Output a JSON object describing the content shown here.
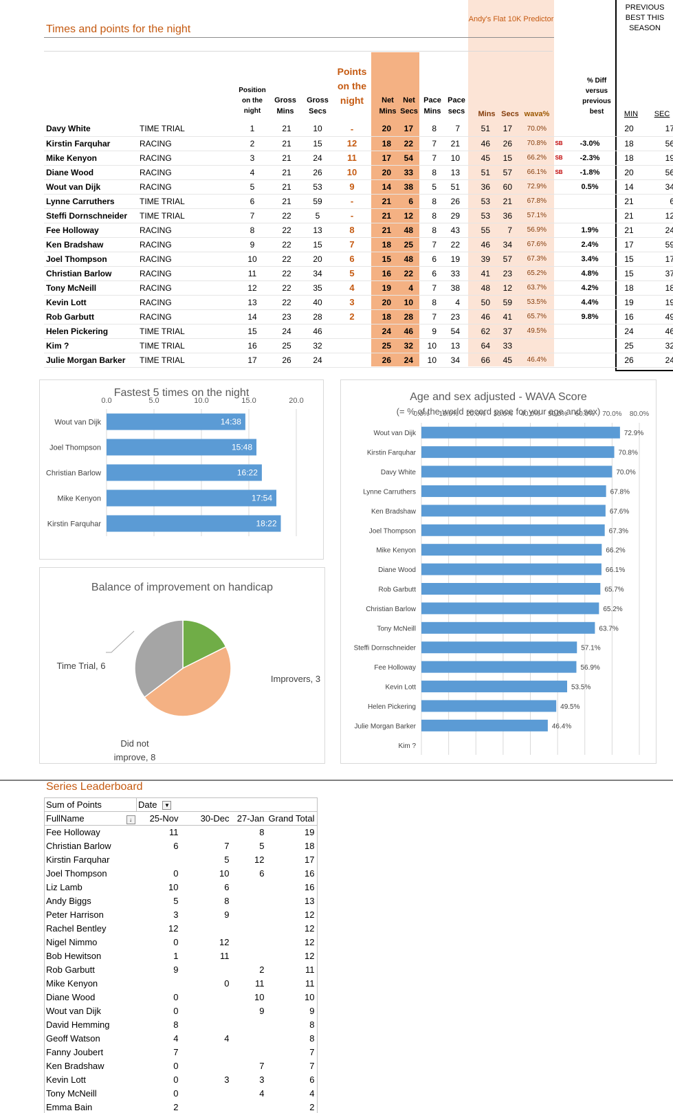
{
  "title": "Times and points for the night",
  "predictor_title": "Andy's Flat 10K Predictor",
  "previous_best_title": "PREVIOUS BEST THIS SEASON",
  "headers": {
    "position": "Position on the night",
    "gross_mins": "Gross Mins",
    "gross_secs": "Gross Secs",
    "points": "Points on the night",
    "net_mins": "Net Mins",
    "net_secs": "Net Secs",
    "pace_mins": "Pace Mins",
    "pace_secs": "Pace secs",
    "pred_mins": "Mins",
    "pred_secs": "Secs",
    "wava": "wava%",
    "pct_diff": "% Diff versus previous best",
    "prev_min": "MIN",
    "prev_sec": "SEC"
  },
  "results": [
    {
      "name": "Davy White",
      "type": "TIME TRIAL",
      "pos": "1",
      "gm": "21",
      "gs": "10",
      "pts": "-",
      "nm": "20",
      "ns": "17",
      "pm": "8",
      "ps": "7",
      "prm": "51",
      "prs": "17",
      "wava": "70.0%",
      "sb": "",
      "diff": "",
      "bm": "20",
      "bs": "17"
    },
    {
      "name": "Kirstin Farquhar",
      "type": "RACING",
      "pos": "2",
      "gm": "21",
      "gs": "15",
      "pts": "12",
      "nm": "18",
      "ns": "22",
      "pm": "7",
      "ps": "21",
      "prm": "46",
      "prs": "26",
      "wava": "70.8%",
      "sb": "SB",
      "diff": "-3.0%",
      "bm": "18",
      "bs": "56"
    },
    {
      "name": "Mike Kenyon",
      "type": "RACING",
      "pos": "3",
      "gm": "21",
      "gs": "24",
      "pts": "11",
      "nm": "17",
      "ns": "54",
      "pm": "7",
      "ps": "10",
      "prm": "45",
      "prs": "15",
      "wava": "66.2%",
      "sb": "SB",
      "diff": "-2.3%",
      "bm": "18",
      "bs": "19"
    },
    {
      "name": "Diane Wood",
      "type": "RACING",
      "pos": "4",
      "gm": "21",
      "gs": "26",
      "pts": "10",
      "nm": "20",
      "ns": "33",
      "pm": "8",
      "ps": "13",
      "prm": "51",
      "prs": "57",
      "wava": "66.1%",
      "sb": "SB",
      "diff": "-1.8%",
      "bm": "20",
      "bs": "56"
    },
    {
      "name": "Wout van Dijk",
      "type": "RACING",
      "pos": "5",
      "gm": "21",
      "gs": "53",
      "pts": "9",
      "nm": "14",
      "ns": "38",
      "pm": "5",
      "ps": "51",
      "prm": "36",
      "prs": "60",
      "wava": "72.9%",
      "sb": "",
      "diff": "0.5%",
      "bm": "14",
      "bs": "34"
    },
    {
      "name": "Lynne Carruthers",
      "type": "TIME TRIAL",
      "pos": "6",
      "gm": "21",
      "gs": "59",
      "pts": "-",
      "nm": "21",
      "ns": "6",
      "pm": "8",
      "ps": "26",
      "prm": "53",
      "prs": "21",
      "wava": "67.8%",
      "sb": "",
      "diff": "",
      "bm": "21",
      "bs": "6"
    },
    {
      "name": "Steffi Dornschneider",
      "type": "TIME TRIAL",
      "pos": "7",
      "gm": "22",
      "gs": "5",
      "pts": "-",
      "nm": "21",
      "ns": "12",
      "pm": "8",
      "ps": "29",
      "prm": "53",
      "prs": "36",
      "wava": "57.1%",
      "sb": "",
      "diff": "",
      "bm": "21",
      "bs": "12"
    },
    {
      "name": "Fee Holloway",
      "type": "RACING",
      "pos": "8",
      "gm": "22",
      "gs": "13",
      "pts": "8",
      "nm": "21",
      "ns": "48",
      "pm": "8",
      "ps": "43",
      "prm": "55",
      "prs": "7",
      "wava": "56.9%",
      "sb": "",
      "diff": "1.9%",
      "bm": "21",
      "bs": "24"
    },
    {
      "name": "Ken Bradshaw",
      "type": "RACING",
      "pos": "9",
      "gm": "22",
      "gs": "15",
      "pts": "7",
      "nm": "18",
      "ns": "25",
      "pm": "7",
      "ps": "22",
      "prm": "46",
      "prs": "34",
      "wava": "67.6%",
      "sb": "",
      "diff": "2.4%",
      "bm": "17",
      "bs": "59"
    },
    {
      "name": "Joel Thompson",
      "type": "RACING",
      "pos": "10",
      "gm": "22",
      "gs": "20",
      "pts": "6",
      "nm": "15",
      "ns": "48",
      "pm": "6",
      "ps": "19",
      "prm": "39",
      "prs": "57",
      "wava": "67.3%",
      "sb": "",
      "diff": "3.4%",
      "bm": "15",
      "bs": "17"
    },
    {
      "name": "Christian Barlow",
      "type": "RACING",
      "pos": "11",
      "gm": "22",
      "gs": "34",
      "pts": "5",
      "nm": "16",
      "ns": "22",
      "pm": "6",
      "ps": "33",
      "prm": "41",
      "prs": "23",
      "wava": "65.2%",
      "sb": "",
      "diff": "4.8%",
      "bm": "15",
      "bs": "37"
    },
    {
      "name": "Tony McNeill",
      "type": "RACING",
      "pos": "12",
      "gm": "22",
      "gs": "35",
      "pts": "4",
      "nm": "19",
      "ns": "4",
      "pm": "7",
      "ps": "38",
      "prm": "48",
      "prs": "12",
      "wava": "63.7%",
      "sb": "",
      "diff": "4.2%",
      "bm": "18",
      "bs": "18"
    },
    {
      "name": "Kevin Lott",
      "type": "RACING",
      "pos": "13",
      "gm": "22",
      "gs": "40",
      "pts": "3",
      "nm": "20",
      "ns": "10",
      "pm": "8",
      "ps": "4",
      "prm": "50",
      "prs": "59",
      "wava": "53.5%",
      "sb": "",
      "diff": "4.4%",
      "bm": "19",
      "bs": "19"
    },
    {
      "name": "Rob Garbutt",
      "type": "RACING",
      "pos": "14",
      "gm": "23",
      "gs": "28",
      "pts": "2",
      "nm": "18",
      "ns": "28",
      "pm": "7",
      "ps": "23",
      "prm": "46",
      "prs": "41",
      "wava": "65.7%",
      "sb": "",
      "diff": "9.8%",
      "bm": "16",
      "bs": "49"
    },
    {
      "name": "Helen Pickering",
      "type": "TIME TRIAL",
      "pos": "15",
      "gm": "24",
      "gs": "46",
      "pts": "",
      "nm": "24",
      "ns": "46",
      "pm": "9",
      "ps": "54",
      "prm": "62",
      "prs": "37",
      "wava": "49.5%",
      "sb": "",
      "diff": "",
      "bm": "24",
      "bs": "46"
    },
    {
      "name": "Kim ?",
      "type": "TIME TRIAL",
      "pos": "16",
      "gm": "25",
      "gs": "32",
      "pts": "",
      "nm": "25",
      "ns": "32",
      "pm": "10",
      "ps": "13",
      "prm": "64",
      "prs": "33",
      "wava": "",
      "sb": "",
      "diff": "",
      "bm": "25",
      "bs": "32"
    },
    {
      "name": "Julie Morgan Barker",
      "type": "TIME TRIAL",
      "pos": "17",
      "gm": "26",
      "gs": "24",
      "pts": "",
      "nm": "26",
      "ns": "24",
      "pm": "10",
      "ps": "34",
      "prm": "66",
      "prs": "45",
      "wava": "46.4%",
      "sb": "",
      "diff": "",
      "bm": "26",
      "bs": "24"
    }
  ],
  "chart_data": [
    {
      "type": "bar",
      "orientation": "horizontal",
      "title": "Fastest 5 times on the night",
      "categories": [
        "Wout van Dijk",
        "Joel Thompson",
        "Christian Barlow",
        "Mike Kenyon",
        "Kirstin Farquhar"
      ],
      "values": [
        14.63,
        15.8,
        16.37,
        17.9,
        18.37
      ],
      "data_labels": [
        "14:38",
        "15:48",
        "16:22",
        "17:54",
        "18:22"
      ],
      "xlim": [
        0,
        20
      ],
      "ticks": [
        "0.0",
        "5.0",
        "10.0",
        "15.0",
        "20.0"
      ],
      "color": "#5b9bd5"
    },
    {
      "type": "pie",
      "title": "Balance of improvement on handicap",
      "slices": [
        {
          "label": "Improvers",
          "value": 3,
          "color": "#70ad47"
        },
        {
          "label": "Did not improve",
          "value": 8,
          "color": "#f4b183"
        },
        {
          "label": "Time Trial",
          "value": 6,
          "color": "#a5a5a5"
        }
      ]
    },
    {
      "type": "bar",
      "orientation": "horizontal",
      "title": "Age and sex adjusted - WAVA Score",
      "subtitle": "(= % of the world record pace for your age and sex)",
      "categories": [
        "Wout van Dijk",
        "Kirstin Farquhar",
        "Davy White",
        "Lynne Carruthers",
        "Ken Bradshaw",
        "Joel Thompson",
        "Mike Kenyon",
        "Diane Wood",
        "Rob Garbutt",
        "Christian Barlow",
        "Tony McNeill",
        "Steffi Dornschneider",
        "Fee Holloway",
        "Kevin Lott",
        "Helen Pickering",
        "Julie Morgan Barker",
        "Kim ?"
      ],
      "values": [
        72.9,
        70.8,
        70.0,
        67.8,
        67.6,
        67.3,
        66.2,
        66.1,
        65.7,
        65.2,
        63.7,
        57.1,
        56.9,
        53.5,
        49.5,
        46.4,
        null
      ],
      "data_labels": [
        "72.9%",
        "70.8%",
        "70.0%",
        "67.8%",
        "67.6%",
        "67.3%",
        "66.2%",
        "66.1%",
        "65.7%",
        "65.2%",
        "63.7%",
        "57.1%",
        "56.9%",
        "53.5%",
        "49.5%",
        "46.4%",
        ""
      ],
      "xlim": [
        0,
        80
      ],
      "ticks": [
        "0.0%",
        "10.0%",
        "20.0%",
        "30.0%",
        "40.0%",
        "50.0%",
        "60.0%",
        "70.0%",
        "80.0%"
      ],
      "color": "#5b9bd5"
    }
  ],
  "pie_labels": {
    "improvers": "Improvers, 3",
    "did_not_improve": "Did not improve, 8",
    "time_trial": "Time Trial, 6"
  },
  "leaderboard": {
    "title": "Series Leaderboard",
    "sum_label": "Sum of Points",
    "date_label": "Date",
    "name_header": "FullName",
    "dates": [
      "25-Nov",
      "30-Dec",
      "27-Jan"
    ],
    "total_header": "Grand Total",
    "rows": [
      [
        "Fee Holloway",
        "11",
        "",
        "8",
        "19"
      ],
      [
        "Christian Barlow",
        "6",
        "7",
        "5",
        "18"
      ],
      [
        "Kirstin Farquhar",
        "",
        "5",
        "12",
        "17"
      ],
      [
        "Joel Thompson",
        "0",
        "10",
        "6",
        "16"
      ],
      [
        "Liz Lamb",
        "10",
        "6",
        "",
        "16"
      ],
      [
        "Andy Biggs",
        "5",
        "8",
        "",
        "13"
      ],
      [
        "Peter Harrison",
        "3",
        "9",
        "",
        "12"
      ],
      [
        "Rachel Bentley",
        "12",
        "",
        "",
        "12"
      ],
      [
        "Nigel Nimmo",
        "0",
        "12",
        "",
        "12"
      ],
      [
        "Bob Hewitson",
        "1",
        "11",
        "",
        "12"
      ],
      [
        "Rob Garbutt",
        "9",
        "",
        "2",
        "11"
      ],
      [
        "Mike Kenyon",
        "",
        "0",
        "11",
        "11"
      ],
      [
        "Diane Wood",
        "0",
        "",
        "10",
        "10"
      ],
      [
        "Wout van Dijk",
        "0",
        "",
        "9",
        "9"
      ],
      [
        "David Hemming",
        "8",
        "",
        "",
        "8"
      ],
      [
        "Geoff Watson",
        "4",
        "4",
        "",
        "8"
      ],
      [
        "Fanny Joubert",
        "7",
        "",
        "",
        "7"
      ],
      [
        "Ken Bradshaw",
        "0",
        "",
        "7",
        "7"
      ],
      [
        "Kevin Lott",
        "0",
        "3",
        "3",
        "6"
      ],
      [
        "Tony McNeill",
        "0",
        "",
        "4",
        "4"
      ],
      [
        "Emma Bain",
        "2",
        "",
        "",
        "2"
      ]
    ]
  }
}
